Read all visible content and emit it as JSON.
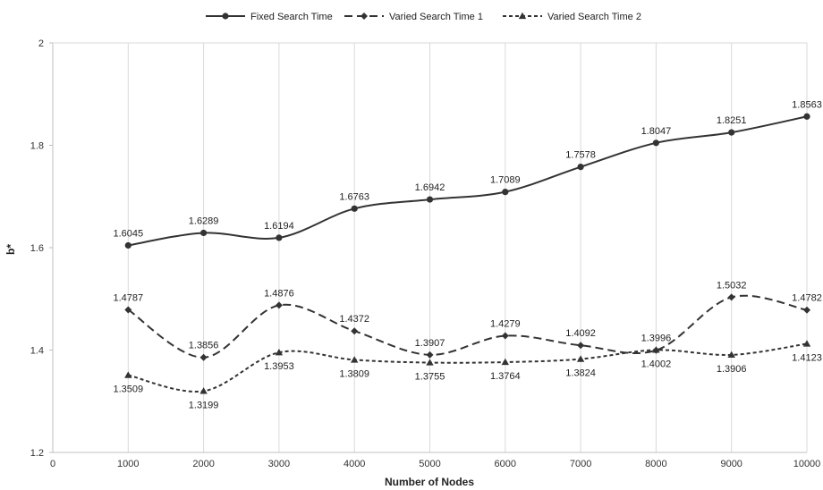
{
  "chart_data": {
    "type": "line",
    "title": "",
    "xlabel": "Number of Nodes",
    "ylabel": "b*",
    "xlim": [
      0,
      10000
    ],
    "ylim": [
      1.2,
      2.0
    ],
    "x_ticks": [
      "0",
      "1000",
      "2000",
      "3000",
      "4000",
      "5000",
      "6000",
      "7000",
      "8000",
      "9000",
      "10000"
    ],
    "y_ticks": [
      "1.2",
      "1.4",
      "1.6",
      "1.8",
      "2"
    ],
    "grid": "vertical",
    "legend_position": "top",
    "x": [
      1000,
      2000,
      3000,
      4000,
      5000,
      6000,
      7000,
      8000,
      9000,
      10000
    ],
    "series": [
      {
        "name": "Fixed Search Time",
        "marker": "circle",
        "line_style": "solid",
        "color": "#333333",
        "values": [
          1.6045,
          1.6289,
          1.6194,
          1.6763,
          1.6942,
          1.7089,
          1.7578,
          1.8047,
          1.8251,
          1.8563
        ],
        "labels": [
          "1.6045",
          "1.6289",
          "1.6194",
          "1.6763",
          "1.6942",
          "1.7089",
          "1.7578",
          "1.8047",
          "1.8251",
          "1.8563"
        ]
      },
      {
        "name": "Varied Search Time 1",
        "marker": "diamond",
        "line_style": "long-dash",
        "color": "#333333",
        "values": [
          1.4787,
          1.3856,
          1.4876,
          1.4372,
          1.3907,
          1.4279,
          1.4092,
          1.3996,
          1.5032,
          1.4782
        ],
        "labels": [
          "1.4787",
          "1.3856",
          "1.4876",
          "1.4372",
          "1.3907",
          "1.4279",
          "1.4092",
          "1.3996",
          "1.5032",
          "1.4782"
        ]
      },
      {
        "name": "Varied Search Time 2",
        "marker": "triangle",
        "line_style": "short-dash",
        "color": "#333333",
        "values": [
          1.3509,
          1.3199,
          1.3953,
          1.3809,
          1.3755,
          1.3764,
          1.3824,
          1.4002,
          1.3906,
          1.4123
        ],
        "labels": [
          "1.3509",
          "1.3199",
          "1.3953",
          "1.3809",
          "1.3755",
          "1.3764",
          "1.3824",
          "1.4002",
          "1.3906",
          "1.4123"
        ]
      }
    ]
  }
}
